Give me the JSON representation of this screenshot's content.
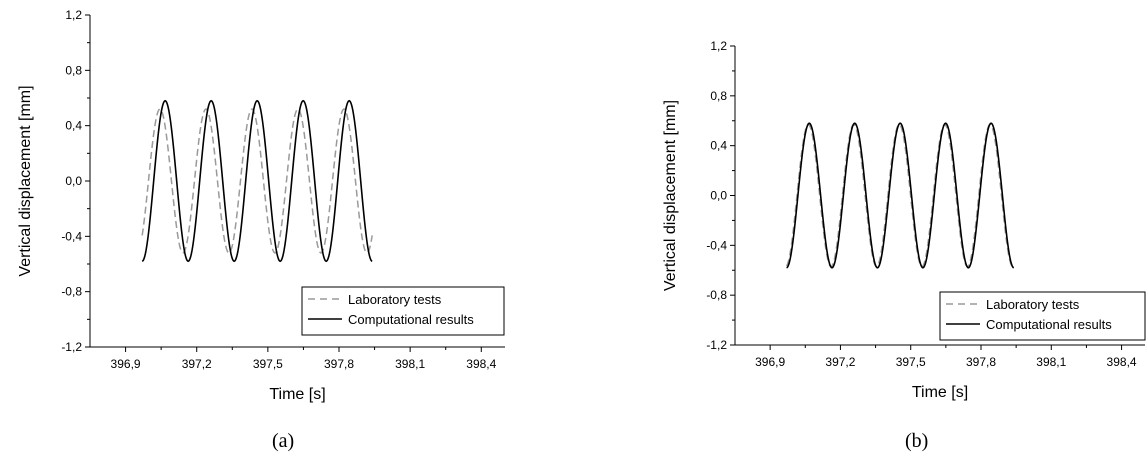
{
  "chart_data": [
    {
      "type": "line",
      "caption": "(a)",
      "xlabel": "Time [s]",
      "ylabel": "Vertical displacement [mm]",
      "xlim": [
        396.75,
        398.5
      ],
      "ylim": [
        -1.2,
        1.2
      ],
      "xticks": [
        396.9,
        397.2,
        397.5,
        397.8,
        398.1,
        398.4
      ],
      "xtick_labels": [
        "396,9",
        "397,2",
        "397,5",
        "397,8",
        "398,1",
        "398,4"
      ],
      "yticks": [
        -1.2,
        -0.8,
        -0.4,
        0.0,
        0.4,
        0.8,
        1.2
      ],
      "ytick_labels": [
        "-1,2",
        "-0,8",
        "-0,4",
        "0,0",
        "0,4",
        "0,8",
        "1,2"
      ],
      "grid": false,
      "legend_position": "bottom-right",
      "series": [
        {
          "name": "Laboratory tests",
          "style": "dashed",
          "color": "#9a9a9a",
          "period": 0.194,
          "amplitude": 0.52,
          "x_start": 396.97,
          "x_end": 397.94,
          "phase_shift": -0.022
        },
        {
          "name": "Computational results",
          "style": "solid",
          "color": "#000000",
          "period": 0.194,
          "amplitude": 0.58,
          "x_start": 396.97,
          "x_end": 397.94,
          "phase_shift": 0
        }
      ]
    },
    {
      "type": "line",
      "caption": "(b)",
      "xlabel": "Time [s]",
      "ylabel": "Vertical displacement [mm]",
      "xlim": [
        396.75,
        398.5
      ],
      "ylim": [
        -1.2,
        1.2
      ],
      "xticks": [
        396.9,
        397.2,
        397.5,
        397.8,
        398.1,
        398.4
      ],
      "xtick_labels": [
        "396,9",
        "397,2",
        "397,5",
        "397,8",
        "398,1",
        "398,4"
      ],
      "yticks": [
        -1.2,
        -0.8,
        -0.4,
        0.0,
        0.4,
        0.8,
        1.2
      ],
      "ytick_labels": [
        "-1,2",
        "-0,8",
        "-0,4",
        "0,0",
        "0,4",
        "0,8",
        "1,2"
      ],
      "grid": false,
      "legend_position": "bottom-right",
      "series": [
        {
          "name": "Laboratory tests",
          "style": "dashed",
          "color": "#9a9a9a",
          "period": 0.194,
          "amplitude": 0.57,
          "x_start": 396.97,
          "x_end": 397.94,
          "phase_shift": -0.004
        },
        {
          "name": "Computational results",
          "style": "solid",
          "color": "#000000",
          "period": 0.194,
          "amplitude": 0.58,
          "x_start": 396.97,
          "x_end": 397.94,
          "phase_shift": 0
        }
      ]
    }
  ]
}
